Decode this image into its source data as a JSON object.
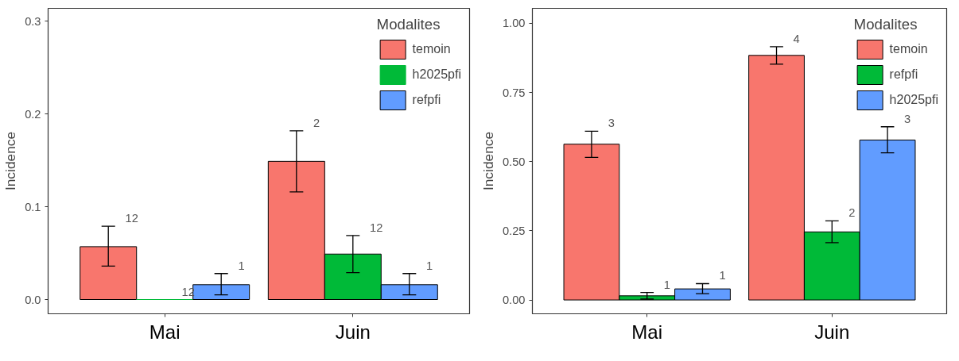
{
  "chart_data": [
    {
      "type": "bar",
      "ylabel": "Incidence",
      "legend_title": "Modalites",
      "categories": [
        "Mai",
        "Juin"
      ],
      "ylim": [
        -0.0154,
        0.314
      ],
      "yticks": [
        {
          "value": 0,
          "label": "0.0"
        },
        {
          "value": 0.1,
          "label": "0.1"
        },
        {
          "value": 0.2,
          "label": "0.2"
        },
        {
          "value": 0.3,
          "label": "0.3"
        }
      ],
      "grid": false,
      "legend": "top right",
      "annotations": [
        "12",
        "2",
        "12",
        "12",
        "1",
        "1"
      ],
      "series": [
        {
          "name": "temoin",
          "color": "#f8766d",
          "values": [
            0.057,
            0.149
          ],
          "errors": [
            [
              0.036,
              0.079
            ],
            [
              0.116,
              0.182
            ]
          ]
        },
        {
          "name": "h2025pfi",
          "color": "#00ba38",
          "values": [
            0,
            0.049
          ],
          "errors": [
            null,
            [
              0.029,
              0.069
            ]
          ]
        },
        {
          "name": "refpfi",
          "color": "#619cff",
          "values": [
            0.016,
            0.016
          ],
          "errors": [
            [
              0.005,
              0.028
            ],
            [
              0.005,
              0.028
            ]
          ]
        }
      ]
    },
    {
      "type": "bar",
      "ylabel": "Incidence",
      "legend_title": "Modalites",
      "categories": [
        "Mai",
        "Juin"
      ],
      "ylim": [
        -0.05,
        1.054
      ],
      "yticks": [
        {
          "value": 0,
          "label": "0.00"
        },
        {
          "value": 0.25,
          "label": "0.25"
        },
        {
          "value": 0.5,
          "label": "0.50"
        },
        {
          "value": 0.75,
          "label": "0.75"
        },
        {
          "value": 1,
          "label": "1.00"
        }
      ],
      "grid": false,
      "legend": "top right",
      "annotations": [
        "3",
        "4",
        "1",
        "2",
        "1",
        "3"
      ],
      "series": [
        {
          "name": "temoin",
          "color": "#f8766d",
          "values": [
            0.563,
            0.884
          ],
          "errors": [
            [
              0.515,
              0.61
            ],
            [
              0.852,
              0.915
            ]
          ]
        },
        {
          "name": "refpfi",
          "color": "#00ba38",
          "values": [
            0.015,
            0.246
          ],
          "errors": [
            [
              0.003,
              0.027
            ],
            [
              0.207,
              0.286
            ]
          ]
        },
        {
          "name": "h2025pfi",
          "color": "#619cff",
          "values": [
            0.04,
            0.578
          ],
          "errors": [
            [
              0.023,
              0.059
            ],
            [
              0.532,
              0.626
            ]
          ]
        }
      ]
    }
  ]
}
